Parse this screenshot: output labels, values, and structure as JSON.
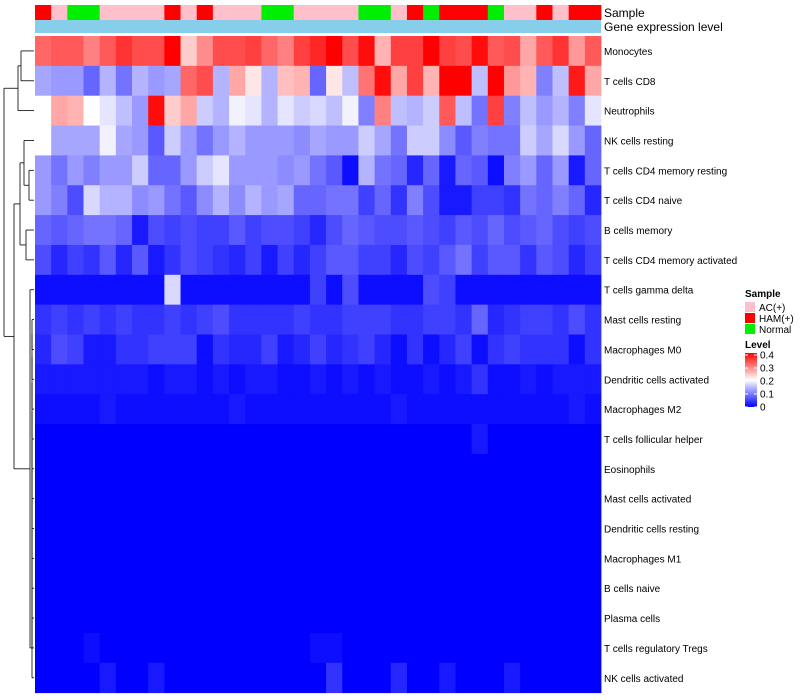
{
  "chart_data": {
    "type": "heatmap",
    "annotation_rows": [
      "Sample",
      "Gene expression level"
    ],
    "row_labels": [
      "Monocytes",
      "T cells CD8",
      "Neutrophils",
      "NK cells resting",
      "T cells CD4 memory resting",
      "T cells CD4 naive",
      "B cells memory",
      "T cells CD4 memory activated",
      "T cells gamma delta",
      "Mast cells resting",
      "Macrophages M0",
      "Dendritic cells activated",
      "Macrophages M2",
      "T cells follicular helper",
      "Eosinophils",
      "Mast cells activated",
      "Dendritic cells resting",
      "Macrophages M1",
      "B cells naive",
      "Plasma cells",
      "T cells regulatory  Tregs",
      "NK cells activated"
    ],
    "sample_groups": [
      "HAM(+)",
      "AC(+)",
      "Normal",
      "Normal",
      "AC(+)",
      "AC(+)",
      "AC(+)",
      "AC(+)",
      "HAM(+)",
      "AC(+)",
      "HAM(+)",
      "AC(+)",
      "AC(+)",
      "AC(+)",
      "Normal",
      "Normal",
      "AC(+)",
      "AC(+)",
      "AC(+)",
      "AC(+)",
      "Normal",
      "Normal",
      "AC(+)",
      "HAM(+)",
      "Normal",
      "HAM(+)",
      "HAM(+)",
      "HAM(+)",
      "Normal",
      "AC(+)",
      "AC(+)",
      "HAM(+)",
      "AC(+)",
      "HAM(+)",
      "HAM(+)"
    ],
    "values": [
      [
        0.32,
        0.33,
        0.33,
        0.3,
        0.33,
        0.36,
        0.34,
        0.34,
        0.4,
        0.24,
        0.29,
        0.34,
        0.34,
        0.35,
        0.32,
        0.3,
        0.35,
        0.37,
        0.4,
        0.34,
        0.39,
        0.26,
        0.35,
        0.35,
        0.4,
        0.35,
        0.34,
        0.39,
        0.33,
        0.34,
        0.27,
        0.33,
        0.36,
        0.28,
        0.33
      ],
      [
        0.13,
        0.12,
        0.12,
        0.08,
        0.14,
        0.09,
        0.14,
        0.12,
        0.13,
        0.32,
        0.34,
        0.14,
        0.27,
        0.22,
        0.14,
        0.25,
        0.26,
        0.08,
        0.22,
        0.15,
        0.31,
        0.39,
        0.27,
        0.35,
        0.26,
        0.42,
        0.42,
        0.15,
        0.42,
        0.28,
        0.26,
        0.1,
        0.15,
        0.38,
        0.27
      ],
      [
        0.2,
        0.27,
        0.26,
        0.2,
        0.18,
        0.15,
        0.12,
        0.39,
        0.24,
        0.27,
        0.16,
        0.14,
        0.19,
        0.18,
        0.14,
        0.18,
        0.16,
        0.17,
        0.15,
        0.19,
        0.1,
        0.3,
        0.15,
        0.14,
        0.16,
        0.33,
        0.15,
        0.09,
        0.35,
        0.1,
        0.15,
        0.12,
        0.14,
        0.1,
        0.18
      ],
      [
        0.2,
        0.13,
        0.13,
        0.13,
        0.19,
        0.13,
        0.12,
        0.07,
        0.16,
        0.12,
        0.09,
        0.12,
        0.14,
        0.12,
        0.12,
        0.12,
        0.11,
        0.13,
        0.12,
        0.12,
        0.16,
        0.13,
        0.09,
        0.16,
        0.16,
        0.11,
        0.07,
        0.1,
        0.09,
        0.09,
        0.16,
        0.13,
        0.17,
        0.12,
        0.08
      ],
      [
        0.12,
        0.09,
        0.12,
        0.1,
        0.12,
        0.12,
        0.16,
        0.08,
        0.08,
        0.12,
        0.16,
        0.18,
        0.12,
        0.12,
        0.12,
        0.11,
        0.12,
        0.09,
        0.07,
        0.01,
        0.14,
        0.09,
        0.08,
        0.03,
        0.08,
        0.02,
        0.08,
        0.07,
        0.01,
        0.1,
        0.12,
        0.08,
        0.12,
        0.02,
        0.08
      ],
      [
        0.12,
        0.1,
        0.06,
        0.17,
        0.14,
        0.14,
        0.11,
        0.12,
        0.09,
        0.07,
        0.11,
        0.14,
        0.11,
        0.14,
        0.12,
        0.13,
        0.08,
        0.08,
        0.09,
        0.09,
        0.05,
        0.08,
        0.04,
        0.1,
        0.06,
        0.02,
        0.02,
        0.05,
        0.05,
        0.04,
        0.09,
        0.08,
        0.1,
        0.08,
        0.03
      ],
      [
        0.08,
        0.07,
        0.08,
        0.09,
        0.09,
        0.08,
        0.02,
        0.06,
        0.05,
        0.06,
        0.05,
        0.05,
        0.07,
        0.05,
        0.06,
        0.06,
        0.05,
        0.03,
        0.06,
        0.08,
        0.07,
        0.06,
        0.06,
        0.07,
        0.06,
        0.05,
        0.07,
        0.06,
        0.08,
        0.06,
        0.07,
        0.08,
        0.06,
        0.05,
        0.06
      ],
      [
        0.06,
        0.03,
        0.05,
        0.04,
        0.07,
        0.03,
        0.07,
        0.02,
        0.04,
        0.06,
        0.05,
        0.04,
        0.03,
        0.05,
        0.02,
        0.05,
        0.03,
        0.05,
        0.07,
        0.07,
        0.05,
        0.05,
        0.03,
        0.06,
        0.05,
        0.07,
        0.09,
        0.05,
        0.07,
        0.07,
        0.04,
        0.07,
        0.06,
        0.03,
        0.05
      ],
      [
        0.01,
        0.01,
        0.01,
        0.01,
        0.01,
        0.01,
        0.01,
        0.01,
        0.17,
        0.01,
        0.01,
        0.01,
        0.01,
        0.01,
        0.01,
        0.01,
        0.01,
        0.05,
        0.01,
        0.06,
        0.01,
        0.01,
        0.01,
        0.01,
        0.06,
        0.05,
        0.01,
        0.01,
        0.01,
        0.01,
        0.01,
        0.01,
        0.01,
        0.01,
        0.01
      ],
      [
        0.04,
        0.05,
        0.04,
        0.05,
        0.04,
        0.05,
        0.04,
        0.04,
        0.05,
        0.04,
        0.05,
        0.06,
        0.04,
        0.04,
        0.04,
        0.04,
        0.05,
        0.04,
        0.04,
        0.05,
        0.05,
        0.05,
        0.04,
        0.04,
        0.05,
        0.05,
        0.04,
        0.08,
        0.03,
        0.04,
        0.05,
        0.05,
        0.04,
        0.06,
        0.04
      ],
      [
        0.03,
        0.06,
        0.05,
        0.02,
        0.02,
        0.04,
        0.04,
        0.05,
        0.05,
        0.05,
        0.01,
        0.04,
        0.03,
        0.03,
        0.05,
        0.02,
        0.03,
        0.05,
        0.03,
        0.04,
        0.05,
        0.03,
        0.01,
        0.04,
        0.01,
        0.03,
        0.05,
        0.01,
        0.04,
        0.05,
        0.04,
        0.04,
        0.04,
        0.01,
        0.04
      ],
      [
        0.02,
        0.02,
        0.02,
        0.02,
        0.02,
        0.02,
        0.02,
        0.01,
        0.02,
        0.02,
        0.01,
        0.02,
        0.01,
        0.02,
        0.02,
        0.01,
        0.01,
        0.02,
        0.01,
        0.02,
        0.01,
        0.02,
        0.01,
        0.01,
        0.02,
        0.01,
        0.02,
        0.04,
        0.01,
        0.01,
        0.02,
        0.01,
        0.02,
        0.02,
        0.02
      ],
      [
        0.01,
        0.01,
        0.01,
        0.01,
        0.02,
        0.01,
        0.01,
        0.01,
        0.01,
        0.01,
        0.01,
        0.01,
        0.02,
        0.01,
        0.01,
        0.01,
        0.01,
        0.01,
        0.01,
        0.01,
        0.01,
        0.01,
        0.02,
        0.01,
        0.01,
        0.01,
        0.01,
        0.01,
        0.01,
        0.01,
        0.01,
        0.01,
        0.01,
        0.02,
        0.01
      ],
      [
        0.0,
        0.0,
        0.0,
        0.0,
        0.0,
        0.0,
        0.0,
        0.0,
        0.0,
        0.0,
        0.0,
        0.0,
        0.0,
        0.0,
        0.0,
        0.0,
        0.0,
        0.0,
        0.0,
        0.0,
        0.0,
        0.0,
        0.0,
        0.0,
        0.0,
        0.0,
        0.0,
        0.02,
        0.0,
        0.0,
        0.0,
        0.0,
        0.0,
        0.0,
        0.0
      ],
      [
        0,
        0,
        0,
        0,
        0,
        0,
        0,
        0,
        0,
        0,
        0,
        0,
        0,
        0,
        0,
        0,
        0,
        0,
        0,
        0,
        0,
        0,
        0,
        0,
        0,
        0,
        0,
        0,
        0,
        0,
        0,
        0,
        0,
        0,
        0
      ],
      [
        0,
        0,
        0,
        0,
        0,
        0,
        0,
        0,
        0,
        0,
        0,
        0,
        0,
        0,
        0,
        0,
        0,
        0,
        0,
        0,
        0,
        0,
        0,
        0,
        0,
        0,
        0,
        0,
        0,
        0,
        0,
        0,
        0,
        0,
        0
      ],
      [
        0,
        0,
        0,
        0,
        0,
        0,
        0,
        0,
        0,
        0,
        0,
        0,
        0,
        0,
        0,
        0,
        0,
        0,
        0,
        0,
        0,
        0,
        0,
        0,
        0,
        0,
        0,
        0,
        0,
        0,
        0,
        0,
        0,
        0,
        0
      ],
      [
        0,
        0,
        0,
        0,
        0,
        0,
        0,
        0,
        0,
        0,
        0,
        0,
        0,
        0,
        0,
        0,
        0,
        0,
        0,
        0,
        0,
        0,
        0,
        0,
        0,
        0,
        0,
        0,
        0,
        0,
        0,
        0,
        0,
        0,
        0
      ],
      [
        0,
        0,
        0,
        0,
        0,
        0,
        0,
        0,
        0,
        0,
        0,
        0,
        0,
        0,
        0,
        0,
        0,
        0,
        0,
        0,
        0,
        0,
        0,
        0,
        0,
        0,
        0,
        0,
        0,
        0,
        0,
        0,
        0,
        0,
        0
      ],
      [
        0,
        0,
        0,
        0,
        0,
        0,
        0,
        0,
        0,
        0,
        0,
        0,
        0,
        0,
        0,
        0,
        0,
        0,
        0,
        0,
        0,
        0,
        0,
        0,
        0,
        0,
        0,
        0,
        0,
        0,
        0,
        0,
        0,
        0,
        0
      ],
      [
        0.0,
        0.0,
        0.0,
        0.01,
        0.0,
        0.0,
        0.0,
        0.0,
        0.0,
        0.0,
        0.0,
        0.0,
        0.0,
        0.0,
        0.0,
        0.0,
        0.0,
        0.01,
        0.01,
        0.0,
        0.0,
        0.0,
        0.0,
        0.0,
        0.0,
        0.0,
        0.0,
        0.0,
        0.0,
        0.0,
        0.0,
        0.0,
        0.0,
        0.0,
        0.0
      ],
      [
        0.0,
        0.0,
        0.0,
        0.0,
        0.02,
        0.0,
        0.0,
        0.02,
        0.0,
        0.0,
        0.0,
        0.0,
        0.0,
        0.0,
        0.0,
        0.0,
        0.0,
        0.0,
        0.04,
        0.0,
        0.0,
        0.0,
        0.03,
        0.0,
        0.0,
        0.02,
        0.0,
        0.0,
        0.0,
        0.02,
        0.0,
        0.0,
        0.0,
        0.0,
        0.0
      ]
    ],
    "legend": {
      "sample_title": "Sample",
      "sample_entries": [
        {
          "label": "AC(+)",
          "color": "#ffc0cb"
        },
        {
          "label": "HAM(+)",
          "color": "#ff0000"
        },
        {
          "label": "Normal",
          "color": "#00ee00"
        }
      ],
      "level_title": "Level",
      "level_ticks": [
        "0.4",
        "0.3",
        "0.2",
        "0.1",
        "0"
      ],
      "level_range": [
        0,
        0.4
      ]
    },
    "colors": {
      "low": "#0000ff",
      "mid": "#ffffff",
      "high": "#ff0000",
      "expression_bar": "#87ceeb"
    }
  }
}
